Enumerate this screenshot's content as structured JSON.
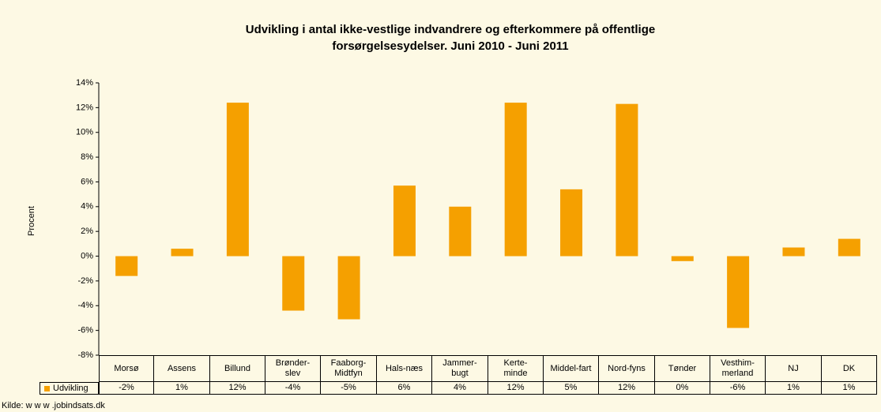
{
  "chart_data": {
    "type": "bar",
    "title": "Udvikling i antal ikke-vestlige indvandrere og efterkommere på offentlige\nforsørgelsesydelser. Juni 2010 - Juni 2011",
    "y_label": "Procent",
    "source": "Kilde: w w w .jobindsats.dk",
    "categories": [
      "Morsø",
      "Assens",
      "Billund",
      "Brønder-\nslev",
      "Faaborg-\nMidtfyn",
      "Hals-næs",
      "Jammer-\nbugt",
      "Kerte-\nminde",
      "Middel-fart",
      "Nord-fyns",
      "Tønder",
      "Vesthim-\nmerland",
      "NJ",
      "DK"
    ],
    "series": [
      {
        "name": "Udvikling",
        "color": "#f5a000",
        "values": [
          -1.6,
          0.6,
          12.4,
          -4.4,
          -5.1,
          5.7,
          4.0,
          12.4,
          5.4,
          12.3,
          -0.4,
          -5.8,
          0.7,
          1.4
        ],
        "value_labels": [
          "-2%",
          "1%",
          "12%",
          "-4%",
          "-5%",
          "6%",
          "4%",
          "12%",
          "5%",
          "12%",
          "0%",
          "-6%",
          "1%",
          "1%"
        ]
      }
    ],
    "ylim": [
      -8,
      14
    ],
    "yticks": [
      {
        "value": -8,
        "label": "-8%"
      },
      {
        "value": -6,
        "label": "-6%"
      },
      {
        "value": -4,
        "label": "-4%"
      },
      {
        "value": -2,
        "label": "-2%"
      },
      {
        "value": 0,
        "label": "0%"
      },
      {
        "value": 2,
        "label": "2%"
      },
      {
        "value": 4,
        "label": "4%"
      },
      {
        "value": 6,
        "label": "6%"
      },
      {
        "value": 8,
        "label": "8%"
      },
      {
        "value": 10,
        "label": "10%"
      },
      {
        "value": 12,
        "label": "12%"
      },
      {
        "value": 14,
        "label": "14%"
      }
    ],
    "grid": false
  }
}
